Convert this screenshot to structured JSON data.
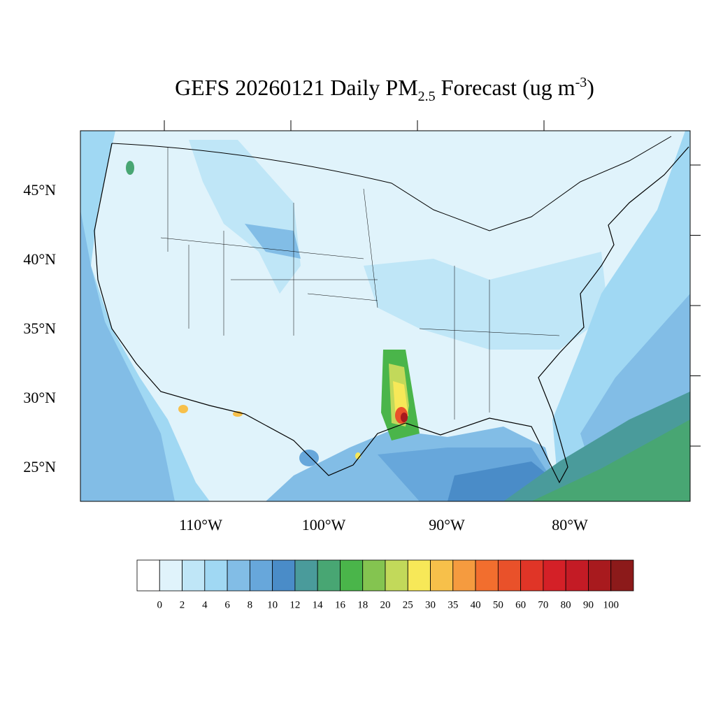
{
  "title": {
    "main": "GEFS 20260121 Daily PM",
    "subscript": "2.5",
    "middle": " Forecast (ug m",
    "superscript": "-3",
    "end": ")"
  },
  "lat_ticks": [
    {
      "value": 45,
      "label": "45°N"
    },
    {
      "value": 40,
      "label": "40°N"
    },
    {
      "value": 35,
      "label": "35°N"
    },
    {
      "value": 30,
      "label": "30°N"
    },
    {
      "value": 25,
      "label": "25°N"
    }
  ],
  "lon_ticks": [
    {
      "value": -110,
      "label": "110°W"
    },
    {
      "value": -100,
      "label": "100°W"
    },
    {
      "value": -90,
      "label": "90°W"
    },
    {
      "value": -80,
      "label": "80°W"
    }
  ],
  "colorbar": {
    "levels": [
      0,
      2,
      4,
      6,
      8,
      10,
      12,
      14,
      16,
      18,
      20,
      25,
      30,
      35,
      40,
      50,
      60,
      70,
      80,
      90,
      100
    ],
    "colors": [
      "#ffffff",
      "#e0f3fb",
      "#bfe6f7",
      "#a0d8f3",
      "#82bde6",
      "#67a7db",
      "#4a8cc8",
      "#4a9b9b",
      "#48a673",
      "#4ab54a",
      "#84c450",
      "#c2d95a",
      "#f7e858",
      "#f7c04a",
      "#f59b3f",
      "#f26e2e",
      "#e9512a",
      "#e03527",
      "#d42027",
      "#c41b25",
      "#a81a1e",
      "#8c1a1a"
    ]
  }
}
